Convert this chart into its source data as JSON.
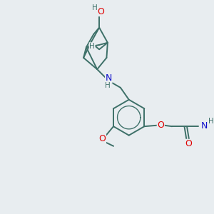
{
  "bg_color": "#e8edf0",
  "bond_color": "#3d7068",
  "bond_width": 1.4,
  "atom_colors": {
    "O": "#e00000",
    "N": "#1010cc",
    "C": "#3d7068",
    "H": "#3d7068"
  },
  "font_size": 8.5,
  "fig_size": [
    3.0,
    3.0
  ],
  "dpi": 100
}
